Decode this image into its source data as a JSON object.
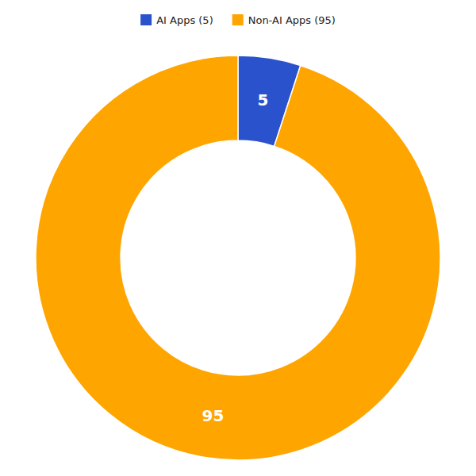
{
  "chart_data": {
    "type": "donut",
    "categories": [
      "AI Apps (5)",
      "Non-AI Apps (95)"
    ],
    "values": [
      5,
      95
    ],
    "colors": [
      "#2952CC",
      "#FFA500"
    ],
    "data_labels": true,
    "legend": "top"
  }
}
